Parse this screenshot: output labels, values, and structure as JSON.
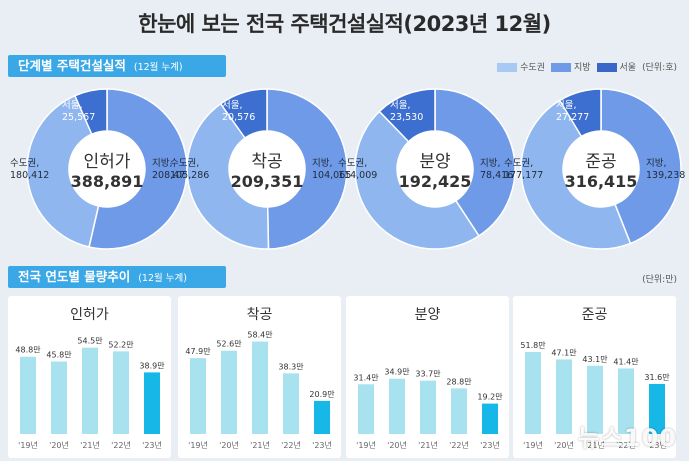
{
  "title": "한눈에 보는 전국 주택건설실적(2023년 12월)",
  "section1": {
    "label": "단계별 주택건설실적",
    "sub": "(12월 누계)"
  },
  "section2": {
    "label": "전국 연도별 물량추이",
    "sub": "(12월 누계)",
    "unit": "(단위:만)"
  },
  "legend": {
    "items": [
      {
        "name": "수도권",
        "color": "#a9c9f5"
      },
      {
        "name": "지방",
        "color": "#6f9ae8"
      },
      {
        "name": "서울",
        "color": "#3b66c9"
      }
    ],
    "unit": "(단위:호)"
  },
  "colors": {
    "capital": "#8fb6ef",
    "local": "#6f9ae8",
    "seoul": "#3d6fd0",
    "bar": "#a7e2ee",
    "bar_current": "#17b7e8"
  },
  "watermark": "뉴스100",
  "chart_data": [
    {
      "type": "pie",
      "name": "인허가",
      "total": "388,891",
      "slices": [
        {
          "label": "수도권,",
          "value": 180412,
          "value_text": "180,412"
        },
        {
          "label": "지방,",
          "value": 208479,
          "value_text": "208,479"
        },
        {
          "label": "서울,",
          "value": 25567,
          "value_text": "25,567"
        }
      ]
    },
    {
      "type": "pie",
      "name": "착공",
      "total": "209,351",
      "slices": [
        {
          "label": "수도권,",
          "value": 105286,
          "value_text": "105,286"
        },
        {
          "label": "지방,",
          "value": 104065,
          "value_text": "104,065"
        },
        {
          "label": "서울,",
          "value": 20576,
          "value_text": "20,576"
        }
      ]
    },
    {
      "type": "pie",
      "name": "분양",
      "total": "192,425",
      "slices": [
        {
          "label": "수도권,",
          "value": 114009,
          "value_text": "114,009"
        },
        {
          "label": "지방,",
          "value": 78416,
          "value_text": "78,416"
        },
        {
          "label": "서울,",
          "value": 23530,
          "value_text": "23,530"
        }
      ]
    },
    {
      "type": "pie",
      "name": "준공",
      "total": "316,415",
      "slices": [
        {
          "label": "수도권,",
          "value": 177177,
          "value_text": "177,177"
        },
        {
          "label": "지방,",
          "value": 139238,
          "value_text": "139,238"
        },
        {
          "label": "서울,",
          "value": 27277,
          "value_text": "27,277"
        }
      ]
    },
    {
      "type": "bar",
      "title": "인허가",
      "categories": [
        "'19년",
        "'20년",
        "'21년",
        "'22년",
        "'23년"
      ],
      "values": [
        48.8,
        45.8,
        54.5,
        52.2,
        38.9
      ],
      "labels": [
        "48.8만",
        "45.8만",
        "54.5만",
        "52.2만",
        "38.9만"
      ]
    },
    {
      "type": "bar",
      "title": "착공",
      "categories": [
        "'19년",
        "'20년",
        "'21년",
        "'22년",
        "'23년"
      ],
      "values": [
        47.9,
        52.6,
        58.4,
        38.3,
        20.9
      ],
      "labels": [
        "47.9만",
        "52.6만",
        "58.4만",
        "38.3만",
        "20.9만"
      ]
    },
    {
      "type": "bar",
      "title": "분양",
      "categories": [
        "'19년",
        "'20년",
        "'21년",
        "'22년",
        "'23년"
      ],
      "values": [
        31.4,
        34.9,
        33.7,
        28.8,
        19.2
      ],
      "labels": [
        "31.4만",
        "34.9만",
        "33.7만",
        "28.8만",
        "19.2만"
      ]
    },
    {
      "type": "bar",
      "title": "준공",
      "categories": [
        "'19년",
        "'20년",
        "'21년",
        "'22년",
        "'23년"
      ],
      "values": [
        51.8,
        47.1,
        43.1,
        41.4,
        31.6
      ],
      "labels": [
        "51.8만",
        "47.1만",
        "43.1만",
        "41.4만",
        "31.6만"
      ]
    }
  ]
}
